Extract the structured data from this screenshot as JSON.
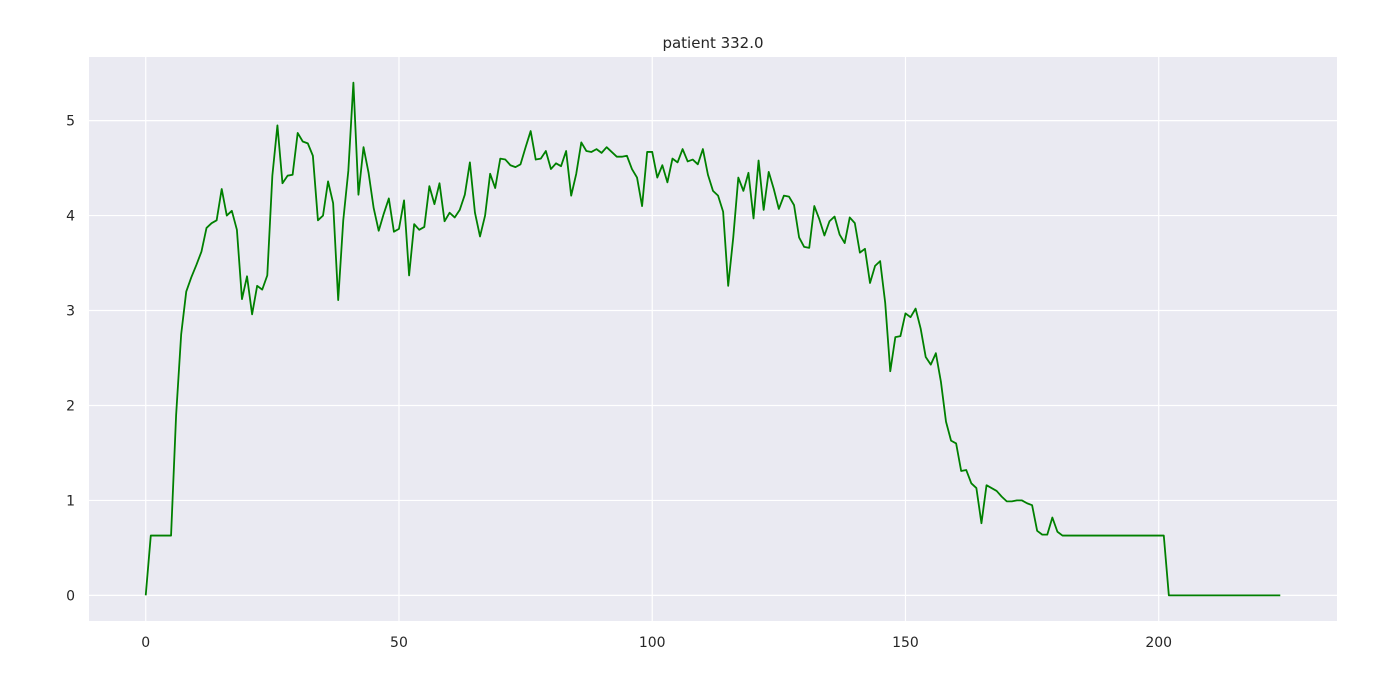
{
  "chart_data": {
    "type": "line",
    "title": "patient 332.0",
    "xlabel": "",
    "ylabel": "",
    "xlim": [
      -11.2,
      235.2
    ],
    "ylim": [
      -0.27,
      5.67
    ],
    "x_ticks": [
      0,
      50,
      100,
      150,
      200
    ],
    "y_ticks": [
      0,
      1,
      2,
      3,
      4,
      5
    ],
    "grid": true,
    "background": "#eaeaf2",
    "grid_color": "#ffffff",
    "line_color": "#008000",
    "series": [
      {
        "values": [
          0.0,
          0.63,
          0.63,
          0.63,
          0.63,
          0.63,
          1.9,
          2.75,
          3.2,
          3.35,
          3.48,
          3.62,
          3.87,
          3.92,
          3.95,
          4.28,
          4.0,
          4.05,
          3.85,
          3.12,
          3.36,
          2.96,
          3.26,
          3.22,
          3.37,
          4.42,
          4.95,
          4.34,
          4.42,
          4.43,
          4.87,
          4.78,
          4.76,
          4.63,
          3.95,
          4.0,
          4.36,
          4.13,
          3.11,
          3.95,
          4.47,
          5.4,
          4.22,
          4.72,
          4.45,
          4.08,
          3.84,
          4.02,
          4.18,
          3.83,
          3.86,
          4.16,
          3.37,
          3.91,
          3.85,
          3.88,
          4.31,
          4.12,
          4.34,
          3.94,
          4.03,
          3.98,
          4.06,
          4.22,
          4.56,
          4.03,
          3.78,
          4.0,
          4.44,
          4.29,
          4.6,
          4.59,
          4.53,
          4.51,
          4.54,
          4.72,
          4.89,
          4.59,
          4.6,
          4.68,
          4.49,
          4.55,
          4.52,
          4.68,
          4.21,
          4.44,
          4.77,
          4.68,
          4.67,
          4.7,
          4.66,
          4.72,
          4.67,
          4.62,
          4.62,
          4.63,
          4.49,
          4.4,
          4.1,
          4.67,
          4.67,
          4.4,
          4.53,
          4.35,
          4.6,
          4.56,
          4.7,
          4.57,
          4.59,
          4.54,
          4.7,
          4.43,
          4.26,
          4.21,
          4.04,
          3.26,
          3.77,
          4.4,
          4.26,
          4.45,
          3.97,
          4.58,
          4.06,
          4.46,
          4.28,
          4.07,
          4.21,
          4.2,
          4.11,
          3.77,
          3.67,
          3.66,
          4.1,
          3.96,
          3.79,
          3.94,
          3.99,
          3.8,
          3.71,
          3.98,
          3.92,
          3.61,
          3.65,
          3.29,
          3.47,
          3.52,
          3.08,
          2.36,
          2.72,
          2.73,
          2.97,
          2.93,
          3.02,
          2.81,
          2.51,
          2.43,
          2.55,
          2.25,
          1.83,
          1.63,
          1.6,
          1.31,
          1.32,
          1.18,
          1.13,
          0.76,
          1.16,
          1.13,
          1.1,
          1.04,
          0.99,
          0.99,
          1.0,
          1.0,
          0.97,
          0.95,
          0.68,
          0.64,
          0.64,
          0.82,
          0.67,
          0.63,
          0.63,
          0.63,
          0.63,
          0.63,
          0.63,
          0.63,
          0.63,
          0.63,
          0.63,
          0.63,
          0.63,
          0.63,
          0.63,
          0.63,
          0.63,
          0.63,
          0.63,
          0.63,
          0.63,
          0.63,
          0.0,
          0.0,
          0.0,
          0.0,
          0.0,
          0.0,
          0.0,
          0.0,
          0.0,
          0.0,
          0.0,
          0.0,
          0.0,
          0.0,
          0.0,
          0.0,
          0.0,
          0.0,
          0.0,
          0.0,
          0.0,
          0.0,
          0.0
        ]
      }
    ]
  }
}
